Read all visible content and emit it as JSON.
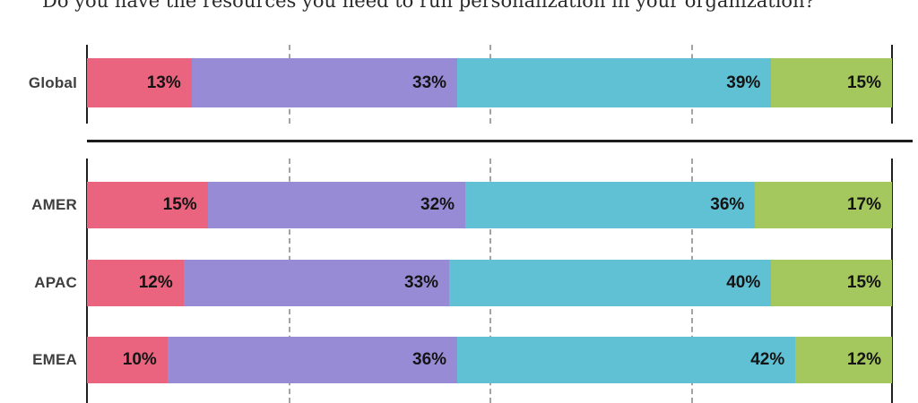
{
  "title": "Do you have the resources you need to run personalization in your organization?",
  "chart_data": {
    "type": "bar",
    "variant": "horizontal-stacked",
    "unit": "%",
    "xlim": [
      0,
      100
    ],
    "gridlines_percent": [
      25,
      50,
      75
    ],
    "grid": "dashed-vertical",
    "axis_color": "#1f1f1f",
    "series_colors": [
      "#ea647f",
      "#988bd6",
      "#60c1d4",
      "#a4c85d"
    ],
    "groups": [
      {
        "id": "global",
        "rows": [
          {
            "label": "Global",
            "values": [
              13,
              33,
              39,
              15
            ]
          }
        ]
      },
      {
        "id": "regions",
        "rows": [
          {
            "label": "AMER",
            "values": [
              15,
              32,
              36,
              17
            ]
          },
          {
            "label": "APAC",
            "values": [
              12,
              33,
              40,
              15
            ]
          },
          {
            "label": "EMEA",
            "values": [
              10,
              36,
              42,
              12
            ]
          }
        ]
      }
    ]
  }
}
